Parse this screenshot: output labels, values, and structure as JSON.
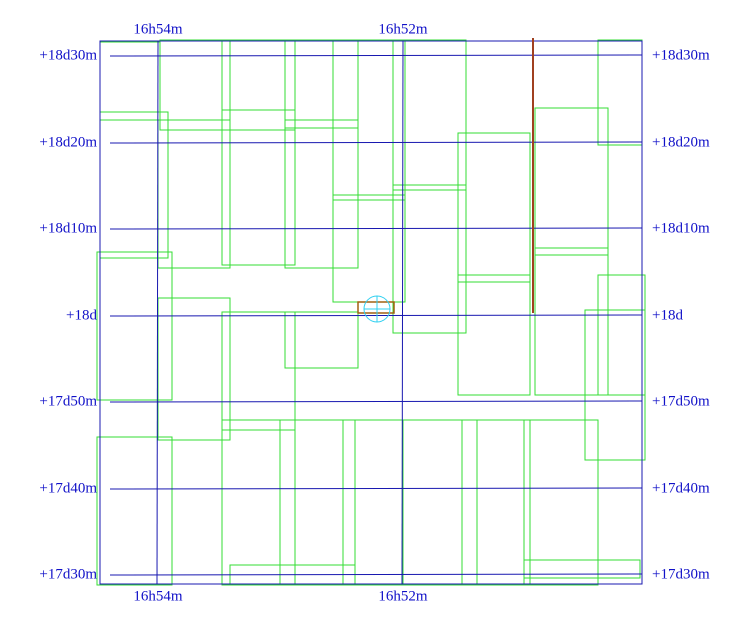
{
  "ra_labels_top": [
    "16h54m",
    "16h52m"
  ],
  "ra_labels_bottom": [
    "16h54m",
    "16h52m"
  ],
  "dec_labels_left": [
    "+18d30m",
    "+18d20m",
    "+18d10m",
    "+18d",
    "+17d50m",
    "+17d40m",
    "+17d30m"
  ],
  "dec_labels_right": [
    "+18d30m",
    "+18d20m",
    "+18d10m",
    "+18d",
    "+17d50m",
    "+17d40m",
    "+17d30m"
  ]
}
